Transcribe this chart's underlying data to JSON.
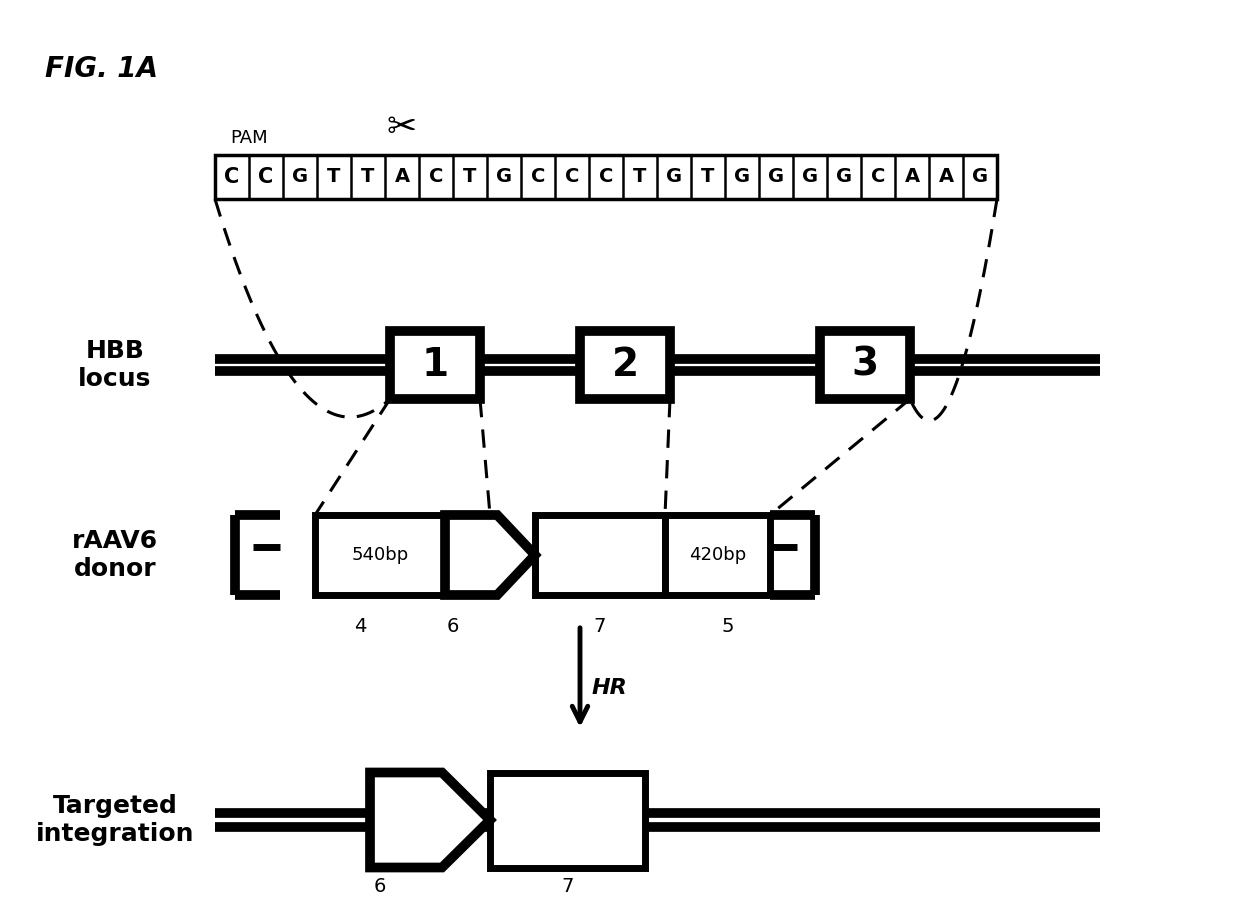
{
  "fig_label": "FIG. 1A",
  "sequence": [
    "C",
    "C",
    "G",
    "T",
    "T",
    "A",
    "C",
    "T",
    "G",
    "C",
    "C",
    "C",
    "T",
    "G",
    "T",
    "G",
    "G",
    "G",
    "G",
    "C",
    "A",
    "A",
    "G"
  ],
  "bold_indices": [
    0,
    1
  ],
  "pam_label": "PAM",
  "hbb_label": "HBB\nlocus",
  "raav6_label": "rAAV6\ndonor",
  "targeted_label": "Targeted\nintegration",
  "homology1_label": "540bp",
  "homology2_label": "420bp",
  "labels_donor": [
    "4",
    "6",
    "7",
    "5"
  ],
  "background_color": "#ffffff",
  "line_color": "#000000",
  "lw": 2.0,
  "lw_thick": 5.0,
  "lw_xthick": 7.0
}
